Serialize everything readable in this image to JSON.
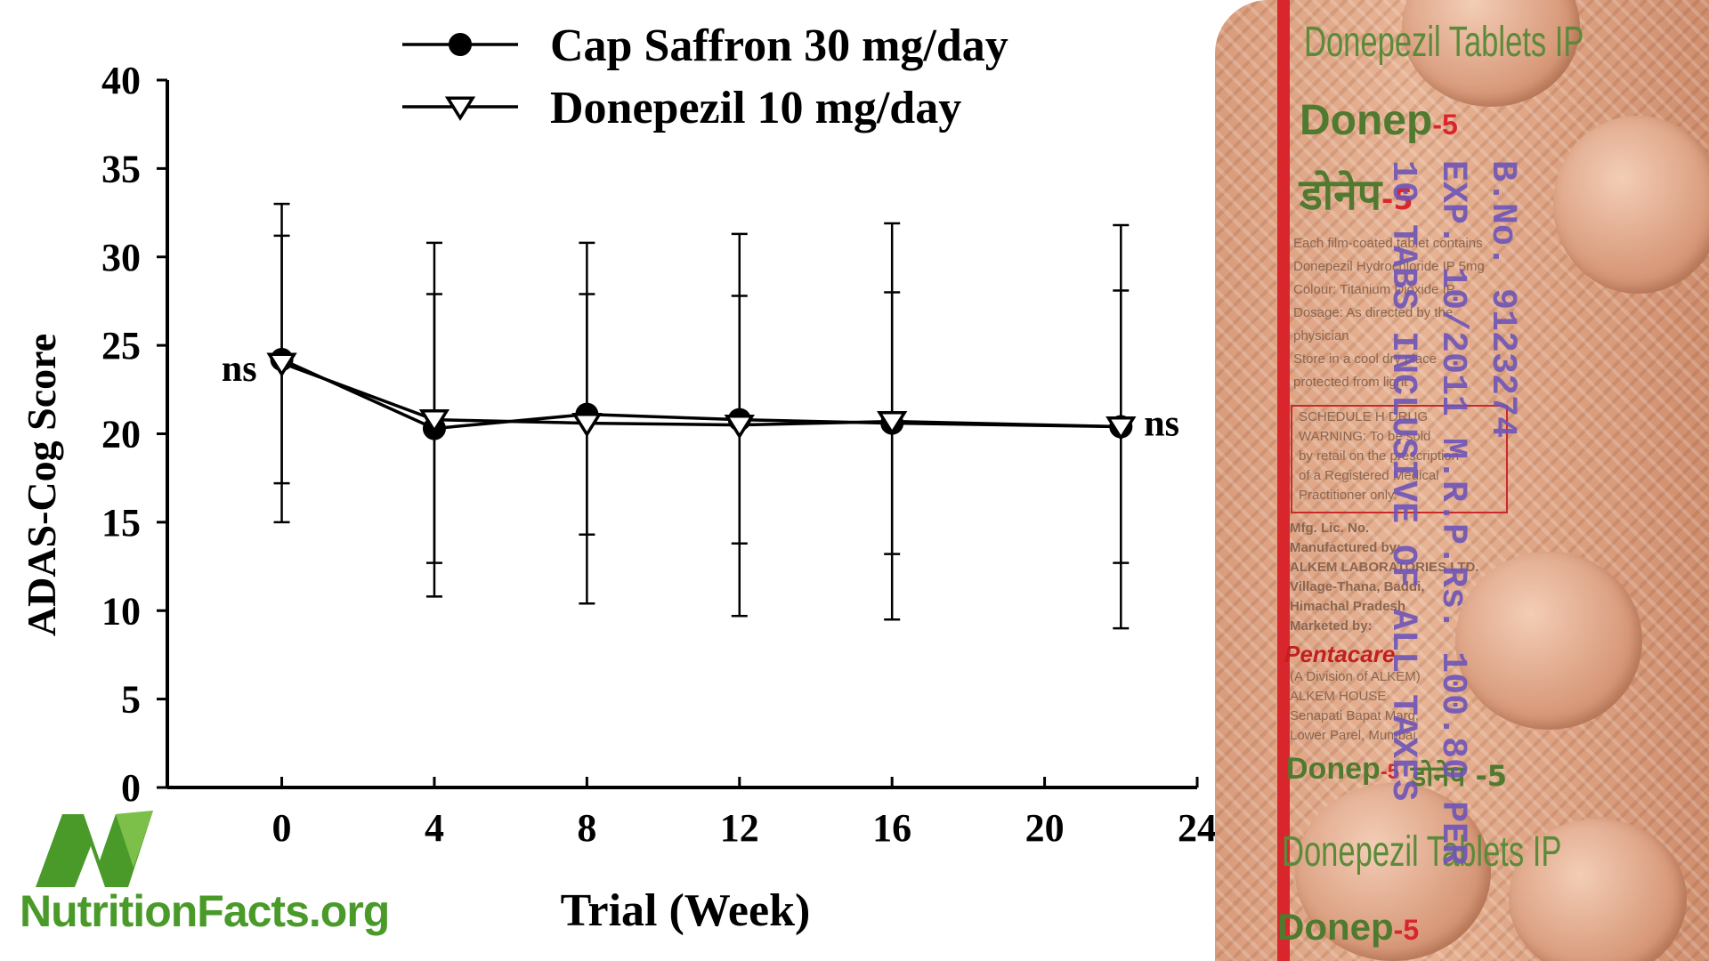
{
  "chart_data": {
    "type": "line",
    "title": "",
    "xlabel": "Trial (Week)",
    "ylabel": "ADAS-Cog Score",
    "xlim": [
      -3,
      24
    ],
    "ylim": [
      0,
      40
    ],
    "x_ticks": [
      0,
      4,
      8,
      12,
      16,
      20,
      24
    ],
    "y_ticks": [
      0,
      5,
      10,
      15,
      20,
      25,
      30,
      35,
      40
    ],
    "grid": false,
    "legend_position": "top",
    "series": [
      {
        "name": "Cap Saffron 30 mg/day",
        "marker": "filled-circle",
        "points": [
          {
            "x": 0,
            "y": 24.2,
            "err": 7.0
          },
          {
            "x": 4,
            "y": 20.3,
            "err": 7.6
          },
          {
            "x": 8,
            "y": 21.1,
            "err": 6.8
          },
          {
            "x": 12,
            "y": 20.8,
            "err": 7.0
          },
          {
            "x": 16,
            "y": 20.6,
            "err": 7.4
          },
          {
            "x": 22,
            "y": 20.4,
            "err": 7.7
          }
        ]
      },
      {
        "name": "Donepezil 10 mg/day",
        "marker": "open-triangle-down",
        "points": [
          {
            "x": 0,
            "y": 24.0,
            "err": 9.0
          },
          {
            "x": 4,
            "y": 20.8,
            "err": 10.0
          },
          {
            "x": 8,
            "y": 20.6,
            "err": 10.2
          },
          {
            "x": 12,
            "y": 20.5,
            "err": 10.8
          },
          {
            "x": 16,
            "y": 20.7,
            "err": 11.2
          },
          {
            "x": 22,
            "y": 20.4,
            "err": 11.4
          }
        ]
      }
    ],
    "annotations": [
      {
        "text": "ns",
        "x": 0,
        "y": 23.7,
        "side": "left"
      },
      {
        "text": "ns",
        "x": 22,
        "y": 20.6,
        "side": "right"
      }
    ]
  },
  "logo": {
    "text": "NutritionFacts.org",
    "color": "#4a9a2a"
  },
  "pack": {
    "generic_top": "Donepezil Tablets IP",
    "brand_top": "Donep",
    "brand_num": "-5",
    "hindi_name": "डोनेप",
    "hindi_num": "-5",
    "lines": [
      "Each film-coated tablet contains",
      "Donepezil Hydrochloride IP 5mg",
      "Colour: Titanium Dioxide IP",
      "Dosage: As directed by the",
      "physician",
      "Store in a cool dry place",
      "protected from light"
    ],
    "schedule_lines": [
      "SCHEDULE H DRUG",
      "WARNING: To be sold",
      "by retail on the prescription",
      "of a Registered Medical",
      "Practitioner only."
    ],
    "maker_lines": [
      "Mfg. Lic. No.",
      "Manufactured by:",
      "ALKEM LABORATORIES LTD.",
      "Village-Thana, Baddi,",
      "Himachal Pradesh",
      "Marketed by:"
    ],
    "marketer": "Pentacare",
    "marketer_lines": [
      "(A Division of ALKEM)",
      "ALKEM HOUSE",
      "Senapati Bapat Marg,",
      "Lower Parel, Mumbai"
    ],
    "brand_bottom": "Donep",
    "brand_bottom_num": "-5",
    "hindi_bottom": "डोनेप -5",
    "generic_bottom": "Donepezil Tablets IP",
    "brand_last": "Donep",
    "brand_last_num": "-5",
    "stamp_lines": [
      "B.No. 9123274",
      "EXP. 10/2011   M.R.P.Rs. 100.80 PER",
      "10 TABS INCLUSIVE OF ALL TAXES"
    ]
  }
}
